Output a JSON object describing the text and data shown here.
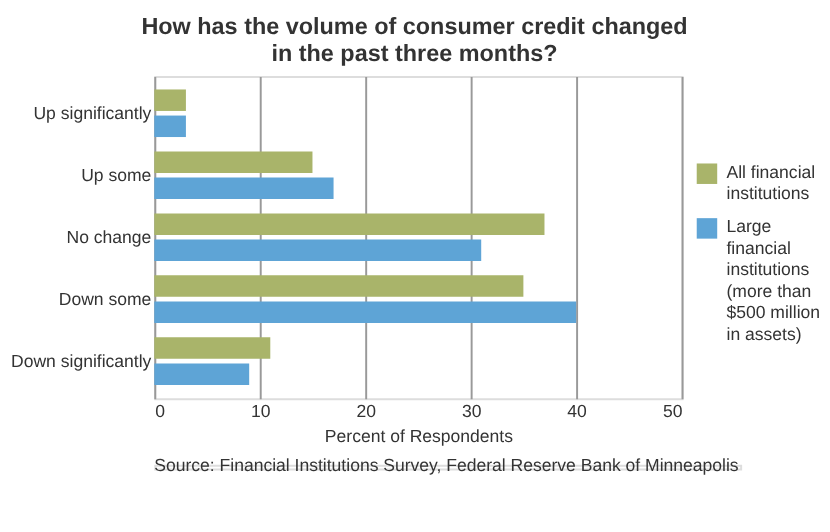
{
  "chart_data": {
    "type": "bar",
    "orientation": "horizontal",
    "title": [
      "How has the volume of consumer credit changed",
      "in the past three months?"
    ],
    "categories": [
      "Up significantly",
      "Up some",
      "No change",
      "Down some",
      "Down significantly"
    ],
    "series": [
      {
        "name": "All financial institutions",
        "color": "#a9b46a",
        "values": [
          3,
          15,
          37,
          35,
          11
        ]
      },
      {
        "name": "Large financial institutions (more than $500 million in assets)",
        "color": "#5ea4d6",
        "values": [
          3,
          17,
          31,
          40,
          9
        ]
      }
    ],
    "xlim": [
      0,
      50
    ],
    "xticks": [
      0,
      10,
      20,
      30,
      40,
      50
    ],
    "xlabel": "Percent of Respondents",
    "grid": "x",
    "legend": "right",
    "annotations": [
      "Source: Financial Institutions Survey, Federal Reserve Bank of Minneapolis"
    ]
  }
}
